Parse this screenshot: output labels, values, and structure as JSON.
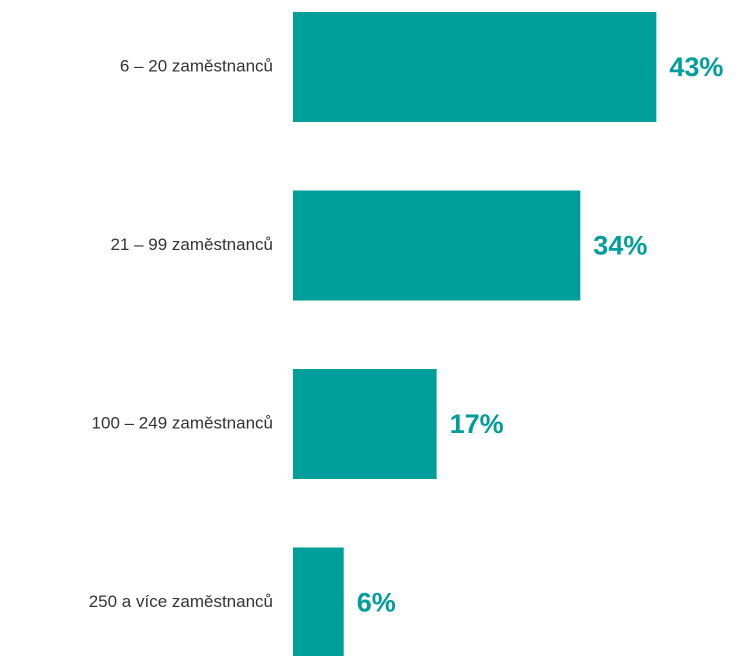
{
  "chart_data": {
    "type": "barh",
    "categories": [
      "6 – 20 zaměstnanců",
      "21 – 99 zaměstnanců",
      "100 – 249 zaměstnanců",
      "250 a více zaměstnanců"
    ],
    "values": [
      43,
      34,
      17,
      6
    ],
    "value_labels": [
      "43%",
      "34%",
      "17%",
      "6%"
    ],
    "color": "#009e9a"
  }
}
